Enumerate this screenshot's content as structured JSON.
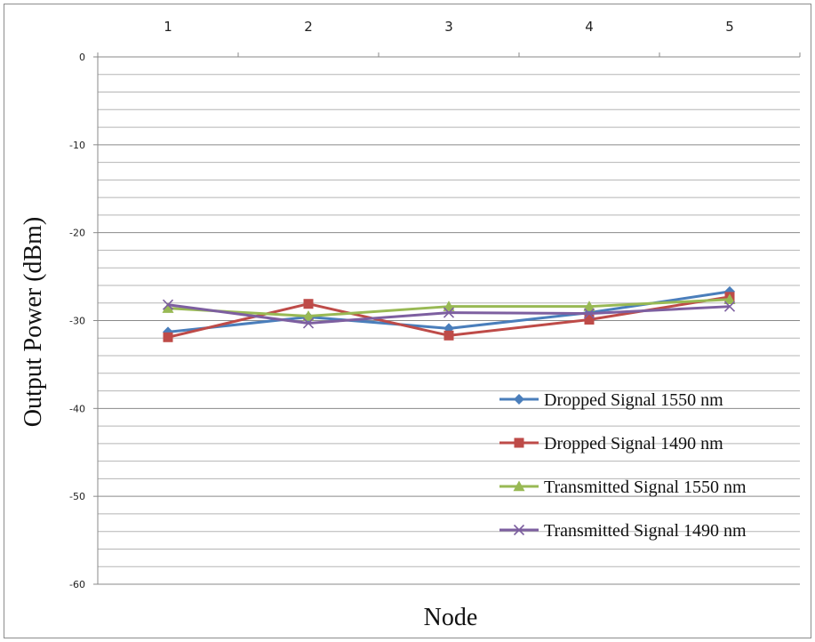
{
  "chart_data": {
    "type": "line",
    "title": "",
    "xlabel": "Node",
    "ylabel": "Output Power  (dBm)",
    "categories": [
      "1",
      "2",
      "3",
      "4",
      "5"
    ],
    "ylim": [
      -60,
      0
    ],
    "yticks": [
      0,
      -10,
      -20,
      -30,
      -40,
      -50,
      -60
    ],
    "minor_step": 2,
    "grid": true,
    "x_axis_position": "top",
    "legend_position": "bottom-right",
    "series": [
      {
        "name": "Dropped Signal 1550 nm",
        "color": "#4a7ebb",
        "marker": "diamond",
        "values": [
          -31.3,
          -29.6,
          -30.9,
          -29.1,
          -26.7
        ]
      },
      {
        "name": "Dropped Signal 1490 nm",
        "color": "#be4b48",
        "marker": "square",
        "values": [
          -31.9,
          -28.1,
          -31.7,
          -29.9,
          -27.3
        ]
      },
      {
        "name": "Transmitted Signal 1550 nm",
        "color": "#98b954",
        "marker": "triangle",
        "values": [
          -28.6,
          -29.5,
          -28.4,
          -28.4,
          -27.6
        ]
      },
      {
        "name": "Transmitted Signal 1490 nm",
        "color": "#7d5fa0",
        "marker": "x",
        "values": [
          -28.2,
          -30.3,
          -29.1,
          -29.2,
          -28.4
        ]
      }
    ]
  }
}
